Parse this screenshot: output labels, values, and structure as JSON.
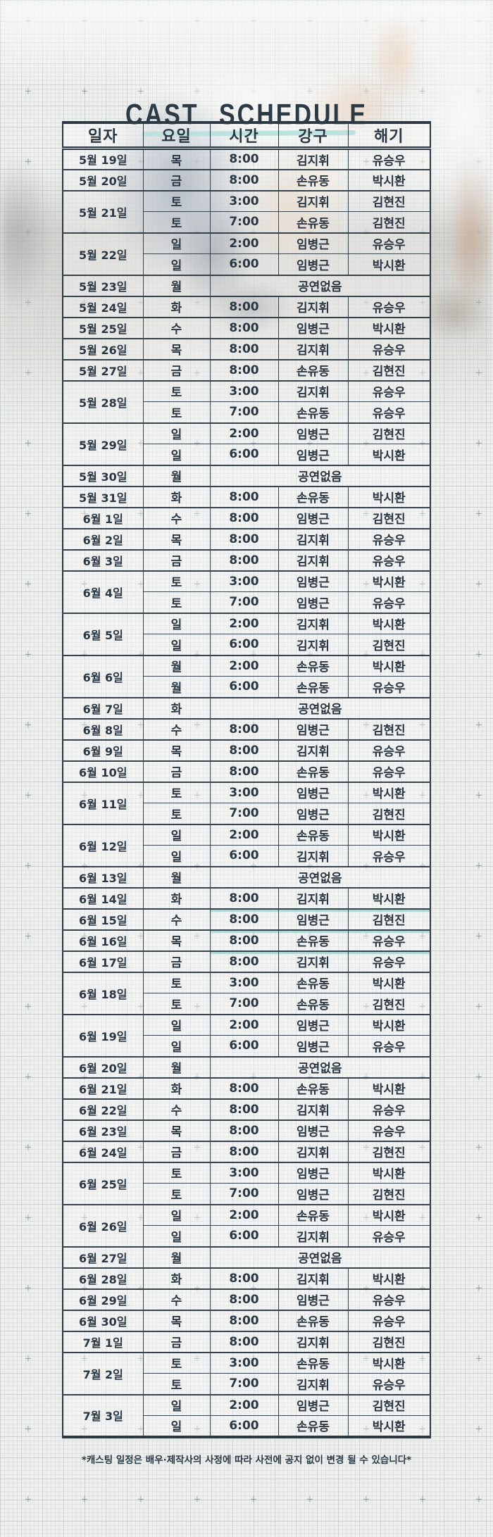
{
  "page": {
    "title": "CAST SCHEDULE",
    "note": "*캐스팅 일정은 배우·제작사의 사정에 따라 사전에 공지 없이 변경 될 수 있습니다*"
  },
  "colors": {
    "ink": "#2b3a44",
    "accent_teal": "#79c9c2",
    "highlight_teal": "#6ebab2",
    "paper": "#eff0ee"
  },
  "table": {
    "columns": [
      "일자",
      "요일",
      "시간",
      "강구",
      "해기"
    ],
    "no_show_label": "공연없음",
    "rows": [
      {
        "date": "5월 19일",
        "span": 1,
        "day": "목",
        "time": "8:00",
        "ganggu": "김지휘",
        "haegi": "유승우"
      },
      {
        "date": "5월 20일",
        "span": 1,
        "day": "금",
        "time": "8:00",
        "ganggu": "손유동",
        "haegi": "박시환"
      },
      {
        "date": "5월 21일",
        "span": 2,
        "day": "토",
        "time": "3:00",
        "ganggu": "김지휘",
        "haegi": "김현진"
      },
      {
        "day": "토",
        "time": "7:00",
        "ganggu": "손유동",
        "haegi": "김현진"
      },
      {
        "date": "5월 22일",
        "span": 2,
        "day": "일",
        "time": "2:00",
        "ganggu": "임병근",
        "haegi": "유승우"
      },
      {
        "day": "일",
        "time": "6:00",
        "ganggu": "임병근",
        "haegi": "박시환"
      },
      {
        "date": "5월 23일",
        "span": 1,
        "day": "월",
        "no_show": true
      },
      {
        "date": "5월 24일",
        "span": 1,
        "day": "화",
        "time": "8:00",
        "ganggu": "김지휘",
        "haegi": "유승우"
      },
      {
        "date": "5월 25일",
        "span": 1,
        "day": "수",
        "time": "8:00",
        "ganggu": "임병근",
        "haegi": "박시환"
      },
      {
        "date": "5월 26일",
        "span": 1,
        "day": "목",
        "time": "8:00",
        "ganggu": "김지휘",
        "haegi": "유승우"
      },
      {
        "date": "5월 27일",
        "span": 1,
        "day": "금",
        "time": "8:00",
        "ganggu": "손유동",
        "haegi": "김현진"
      },
      {
        "date": "5월 28일",
        "span": 2,
        "day": "토",
        "time": "3:00",
        "ganggu": "김지휘",
        "haegi": "유승우"
      },
      {
        "day": "토",
        "time": "7:00",
        "ganggu": "손유동",
        "haegi": "유승우"
      },
      {
        "date": "5월 29일",
        "span": 2,
        "day": "일",
        "time": "2:00",
        "ganggu": "임병근",
        "haegi": "김현진"
      },
      {
        "day": "일",
        "time": "6:00",
        "ganggu": "임병근",
        "haegi": "박시환"
      },
      {
        "date": "5월 30일",
        "span": 1,
        "day": "월",
        "no_show": true
      },
      {
        "date": "5월 31일",
        "span": 1,
        "day": "화",
        "time": "8:00",
        "ganggu": "손유동",
        "haegi": "박시환"
      },
      {
        "date": "6월 1일",
        "span": 1,
        "day": "수",
        "time": "8:00",
        "ganggu": "임병근",
        "haegi": "김현진"
      },
      {
        "date": "6월 2일",
        "span": 1,
        "day": "목",
        "time": "8:00",
        "ganggu": "김지휘",
        "haegi": "유승우"
      },
      {
        "date": "6월 3일",
        "span": 1,
        "day": "금",
        "time": "8:00",
        "ganggu": "김지휘",
        "haegi": "유승우"
      },
      {
        "date": "6월 4일",
        "span": 2,
        "day": "토",
        "time": "3:00",
        "ganggu": "임병근",
        "haegi": "박시환"
      },
      {
        "day": "토",
        "time": "7:00",
        "ganggu": "임병근",
        "haegi": "유승우"
      },
      {
        "date": "6월 5일",
        "span": 2,
        "day": "일",
        "time": "2:00",
        "ganggu": "김지휘",
        "haegi": "박시환"
      },
      {
        "day": "일",
        "time": "6:00",
        "ganggu": "김지휘",
        "haegi": "김현진"
      },
      {
        "date": "6월 6일",
        "span": 2,
        "day": "월",
        "time": "2:00",
        "ganggu": "손유동",
        "haegi": "박시환"
      },
      {
        "day": "월",
        "time": "6:00",
        "ganggu": "손유동",
        "haegi": "유승우"
      },
      {
        "date": "6월 7일",
        "span": 1,
        "day": "화",
        "no_show": true
      },
      {
        "date": "6월 8일",
        "span": 1,
        "day": "수",
        "time": "8:00",
        "ganggu": "임병근",
        "haegi": "김현진"
      },
      {
        "date": "6월 9일",
        "span": 1,
        "day": "목",
        "time": "8:00",
        "ganggu": "김지휘",
        "haegi": "유승우"
      },
      {
        "date": "6월 10일",
        "span": 1,
        "day": "금",
        "time": "8:00",
        "ganggu": "손유동",
        "haegi": "유승우"
      },
      {
        "date": "6월 11일",
        "span": 2,
        "day": "토",
        "time": "3:00",
        "ganggu": "임병근",
        "haegi": "박시환"
      },
      {
        "day": "토",
        "time": "7:00",
        "ganggu": "임병근",
        "haegi": "김현진"
      },
      {
        "date": "6월 12일",
        "span": 2,
        "day": "일",
        "time": "2:00",
        "ganggu": "손유동",
        "haegi": "박시환"
      },
      {
        "day": "일",
        "time": "6:00",
        "ganggu": "김지휘",
        "haegi": "유승우"
      },
      {
        "date": "6월 13일",
        "span": 1,
        "day": "월",
        "no_show": true
      },
      {
        "date": "6월 14일",
        "span": 1,
        "day": "화",
        "time": "8:00",
        "ganggu": "김지휘",
        "haegi": "박시환",
        "highlight": true
      },
      {
        "date": "6월 15일",
        "span": 1,
        "day": "수",
        "time": "8:00",
        "ganggu": "임병근",
        "haegi": "김현진",
        "highlight": true
      },
      {
        "date": "6월 16일",
        "span": 1,
        "day": "목",
        "time": "8:00",
        "ganggu": "손유동",
        "haegi": "유승우",
        "highlight": true
      },
      {
        "date": "6월 17일",
        "span": 1,
        "day": "금",
        "time": "8:00",
        "ganggu": "김지휘",
        "haegi": "유승우"
      },
      {
        "date": "6월 18일",
        "span": 2,
        "day": "토",
        "time": "3:00",
        "ganggu": "손유동",
        "haegi": "박시환"
      },
      {
        "day": "토",
        "time": "7:00",
        "ganggu": "손유동",
        "haegi": "김현진"
      },
      {
        "date": "6월 19일",
        "span": 2,
        "day": "일",
        "time": "2:00",
        "ganggu": "임병근",
        "haegi": "박시환"
      },
      {
        "day": "일",
        "time": "6:00",
        "ganggu": "임병근",
        "haegi": "유승우"
      },
      {
        "date": "6월 20일",
        "span": 1,
        "day": "월",
        "no_show": true
      },
      {
        "date": "6월 21일",
        "span": 1,
        "day": "화",
        "time": "8:00",
        "ganggu": "손유동",
        "haegi": "박시환"
      },
      {
        "date": "6월 22일",
        "span": 1,
        "day": "수",
        "time": "8:00",
        "ganggu": "김지휘",
        "haegi": "유승우"
      },
      {
        "date": "6월 23일",
        "span": 1,
        "day": "목",
        "time": "8:00",
        "ganggu": "임병근",
        "haegi": "유승우"
      },
      {
        "date": "6월 24일",
        "span": 1,
        "day": "금",
        "time": "8:00",
        "ganggu": "김지휘",
        "haegi": "김현진"
      },
      {
        "date": "6월 25일",
        "span": 2,
        "day": "토",
        "time": "3:00",
        "ganggu": "임병근",
        "haegi": "박시환"
      },
      {
        "day": "토",
        "time": "7:00",
        "ganggu": "임병근",
        "haegi": "김현진"
      },
      {
        "date": "6월 26일",
        "span": 2,
        "day": "일",
        "time": "2:00",
        "ganggu": "손유동",
        "haegi": "박시환"
      },
      {
        "day": "일",
        "time": "6:00",
        "ganggu": "김지휘",
        "haegi": "유승우"
      },
      {
        "date": "6월 27일",
        "span": 1,
        "day": "월",
        "no_show": true
      },
      {
        "date": "6월 28일",
        "span": 1,
        "day": "화",
        "time": "8:00",
        "ganggu": "김지휘",
        "haegi": "박시환"
      },
      {
        "date": "6월 29일",
        "span": 1,
        "day": "수",
        "time": "8:00",
        "ganggu": "임병근",
        "haegi": "유승우"
      },
      {
        "date": "6월 30일",
        "span": 1,
        "day": "목",
        "time": "8:00",
        "ganggu": "손유동",
        "haegi": "유승우"
      },
      {
        "date": "7월 1일",
        "span": 1,
        "day": "금",
        "time": "8:00",
        "ganggu": "김지휘",
        "haegi": "김현진"
      },
      {
        "date": "7월 2일",
        "span": 2,
        "day": "토",
        "time": "3:00",
        "ganggu": "손유동",
        "haegi": "박시환"
      },
      {
        "day": "토",
        "time": "7:00",
        "ganggu": "김지휘",
        "haegi": "유승우"
      },
      {
        "date": "7월 3일",
        "span": 2,
        "day": "일",
        "time": "2:00",
        "ganggu": "임병근",
        "haegi": "김현진"
      },
      {
        "day": "일",
        "time": "6:00",
        "ganggu": "손유동",
        "haegi": "박시환"
      }
    ]
  }
}
